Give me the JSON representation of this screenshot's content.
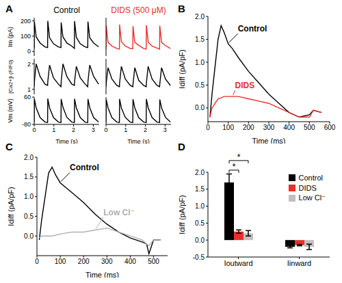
{
  "chart_data": [
    {
      "panel": "A",
      "type": "line",
      "title": "Control",
      "y_label": "Im (pA)",
      "x": [
        0,
        0.01,
        0.1,
        0.3,
        0.55,
        0.68,
        0.69,
        0.78,
        0.98,
        1.23,
        1.36,
        1.37,
        1.46,
        1.66,
        1.91,
        2.04,
        2.05,
        2.14,
        2.34,
        2.59,
        2.72,
        2.73,
        2.82,
        3.02,
        3.27
      ],
      "xlim": [
        0,
        3.3
      ],
      "ylim": [
        -30,
        220
      ],
      "yticks": [
        0,
        100,
        200
      ],
      "tick_labels": "y",
      "series": [
        {
          "color": "#000000",
          "values": [
            20,
            195,
            95,
            55,
            30,
            25,
            200,
            90,
            50,
            30,
            25,
            190,
            95,
            55,
            35,
            20,
            198,
            92,
            50,
            30,
            25,
            195,
            90,
            55,
            30
          ]
        }
      ]
    },
    {
      "type": "line",
      "y_label": "[Ca2+]i (F/F0)",
      "x": [
        0,
        0.01,
        0.1,
        0.3,
        0.55,
        0.68,
        0.69,
        0.78,
        0.98,
        1.23,
        1.36,
        1.37,
        1.46,
        1.66,
        1.91,
        2.04,
        2.05,
        2.14,
        2.34,
        2.59,
        2.72,
        2.73,
        2.82,
        3.02,
        3.27
      ],
      "xlim": [
        0,
        3.3
      ],
      "ylim": [
        0.8,
        2.2
      ],
      "yticks": [
        1,
        2
      ],
      "tick_labels": "y",
      "series": [
        {
          "color": "#000000",
          "values": [
            1.1,
            1.3,
            2.0,
            1.5,
            1.2,
            1.15,
            1.3,
            1.95,
            1.45,
            1.2,
            1.1,
            1.3,
            2.0,
            1.5,
            1.2,
            1.15,
            1.3,
            1.9,
            1.45,
            1.2,
            1.1,
            1.3,
            1.95,
            1.5,
            1.2
          ]
        }
      ]
    },
    {
      "type": "line",
      "y_label": "Vm (mV)",
      "x_label": "Time (s)",
      "x": [
        0,
        0.01,
        0.1,
        0.3,
        0.55,
        0.68,
        0.69,
        0.78,
        0.98,
        1.23,
        1.36,
        1.37,
        1.46,
        1.66,
        1.91,
        2.04,
        2.05,
        2.14,
        2.34,
        2.59,
        2.72,
        2.73,
        2.82,
        3.02,
        3.27
      ],
      "xlim": [
        0,
        3.3
      ],
      "xticks": [
        0,
        1,
        2,
        3
      ],
      "ylim": [
        -80,
        60
      ],
      "yticks": [
        -80,
        60
      ],
      "tick_labels": true,
      "series": [
        {
          "color": "#000000",
          "values": [
            -70,
            50,
            5,
            -45,
            -68,
            -70,
            52,
            5,
            -45,
            -68,
            -70,
            50,
            8,
            -44,
            -68,
            -70,
            51,
            5,
            -45,
            -69,
            -70,
            50,
            6,
            -45,
            -68
          ]
        }
      ]
    },
    {
      "type": "line",
      "title": "DIDS (500 μM)",
      "x": [
        0,
        0.01,
        0.1,
        0.3,
        0.55,
        0.68,
        0.69,
        0.78,
        0.98,
        1.23,
        1.36,
        1.37,
        1.46,
        1.66,
        1.91,
        2.04,
        2.05,
        2.14,
        2.34,
        2.59,
        2.72,
        2.73,
        2.82,
        3.02,
        3.27
      ],
      "xlim": [
        0,
        3.3
      ],
      "ylim": [
        -30,
        220
      ],
      "tick_labels": false,
      "series": [
        {
          "color": "#e8302a",
          "values": [
            15,
            170,
            60,
            35,
            20,
            15,
            175,
            65,
            35,
            20,
            18,
            165,
            60,
            40,
            20,
            15,
            172,
            62,
            35,
            22,
            15,
            168,
            60,
            38,
            20
          ]
        }
      ]
    },
    {
      "type": "line",
      "x": [
        0,
        0.01,
        0.1,
        0.3,
        0.55,
        0.68,
        0.69,
        0.78,
        0.98,
        1.23,
        1.36,
        1.37,
        1.46,
        1.66,
        1.91,
        2.04,
        2.05,
        2.14,
        2.34,
        2.59,
        2.72,
        2.73,
        2.82,
        3.02,
        3.27
      ],
      "xlim": [
        0,
        3.3
      ],
      "ylim": [
        0.8,
        2.2
      ],
      "tick_labels": false,
      "series": [
        {
          "color": "#000000",
          "values": [
            1.1,
            1.25,
            1.85,
            1.4,
            1.15,
            1.1,
            1.25,
            1.9,
            1.4,
            1.15,
            1.1,
            1.2,
            1.85,
            1.35,
            1.15,
            1.1,
            1.25,
            1.9,
            1.4,
            1.15,
            1.1,
            1.2,
            1.85,
            1.4,
            1.15
          ]
        }
      ]
    },
    {
      "type": "line",
      "x_label": "Time (s)",
      "x": [
        0,
        0.01,
        0.1,
        0.3,
        0.55,
        0.68,
        0.69,
        0.78,
        0.98,
        1.23,
        1.36,
        1.37,
        1.46,
        1.66,
        1.91,
        2.04,
        2.05,
        2.14,
        2.34,
        2.59,
        2.72,
        2.73,
        2.82,
        3.02,
        3.27
      ],
      "xlim": [
        0,
        3.3
      ],
      "xticks": [
        0,
        1,
        2,
        3
      ],
      "ylim": [
        -80,
        60
      ],
      "tick_labels": "x",
      "series": [
        {
          "color": "#000000",
          "values": [
            -70,
            48,
            5,
            -45,
            -68,
            -70,
            50,
            4,
            -44,
            -68,
            -70,
            49,
            5,
            -45,
            -68,
            -70,
            50,
            6,
            -45,
            -68,
            -70,
            48,
            5,
            -44,
            -68
          ]
        }
      ]
    },
    {
      "panel": "B",
      "type": "line",
      "x_label": "Time (ms)",
      "y_label": "Idiff (pA/pF)",
      "x": [
        10,
        20,
        35,
        50,
        65,
        80,
        100,
        120,
        150,
        200,
        250,
        300,
        350,
        400,
        450,
        500,
        520,
        560
      ],
      "xlim": [
        0,
        600
      ],
      "xticks": [
        0,
        100,
        200,
        300,
        400,
        500,
        600
      ],
      "ylim": [
        -0.3,
        2
      ],
      "yticks": [
        {
          "value": 0,
          "label": "0.0"
        },
        0.5,
        {
          "value": 1,
          "label": "1.0"
        },
        1.5,
        {
          "value": 2,
          "label": "2.0"
        }
      ],
      "series": [
        {
          "name": "Control",
          "color": "#000000",
          "values": [
            -0.2,
            0.3,
            0.9,
            1.5,
            1.8,
            1.65,
            1.4,
            1.3,
            1.1,
            0.8,
            0.55,
            0.3,
            0.1,
            -0.1,
            -0.2,
            -0.15,
            -0.05,
            -0.1
          ]
        },
        {
          "name": "DIDS",
          "color": "#e8302a",
          "values": [
            -0.2,
            0.0,
            0.1,
            0.2,
            0.22,
            0.25,
            0.25,
            0.25,
            0.25,
            0.2,
            0.15,
            0.1,
            0.0,
            -0.1,
            -0.2,
            -0.2,
            -0.05,
            -0.1
          ]
        }
      ]
    },
    {
      "panel": "C",
      "type": "line",
      "x_label": "Time (ms)",
      "y_label": "Idiff (pA/pF)",
      "x": [
        10,
        20,
        35,
        50,
        65,
        80,
        100,
        120,
        150,
        200,
        250,
        300,
        350,
        400,
        450,
        470,
        480,
        500,
        530
      ],
      "xlim": [
        0,
        560
      ],
      "xticks": [
        0,
        100,
        200,
        300,
        400,
        500
      ],
      "ylim": [
        -0.5,
        2
      ],
      "yticks": [
        {
          "value": 0,
          "label": "0.0"
        },
        0.5,
        {
          "value": 1,
          "label": "1.0"
        },
        1.5,
        {
          "value": 2,
          "label": "2.0"
        }
      ],
      "series": [
        {
          "name": "Control",
          "color": "#000000",
          "values": [
            -0.1,
            0.4,
            1.0,
            1.6,
            1.75,
            1.55,
            1.35,
            1.25,
            1.1,
            0.85,
            0.55,
            0.3,
            0.1,
            -0.05,
            -0.15,
            -0.2,
            -0.45,
            -0.1,
            -0.1
          ]
        },
        {
          "name": "Low Cl⁻",
          "color": "#b0b0b0",
          "values": [
            -0.05,
            0.0,
            0.0,
            0.0,
            0.0,
            0.02,
            0.05,
            0.07,
            0.1,
            0.1,
            0.15,
            0.2,
            0.1,
            0.0,
            -0.1,
            -0.2,
            -0.25,
            -0.1,
            -0.1
          ]
        }
      ]
    },
    {
      "panel": "D",
      "type": "bar",
      "y_label": "Idiff (pA/pF)",
      "categories": [
        "Ioutward",
        "Iinward"
      ],
      "ylim": [
        -0.5,
        2
      ],
      "yticks": [
        -0.5,
        {
          "value": 0,
          "label": "0.0"
        },
        0.5,
        {
          "value": 1,
          "label": "1.0"
        },
        1.5,
        {
          "value": 2,
          "label": "2.0"
        }
      ],
      "legend": "upper right",
      "series": [
        {
          "name": "Control",
          "color": "#000000",
          "values": [
            1.7,
            -0.2
          ],
          "errors": [
            0.25,
            0.03
          ]
        },
        {
          "name": "DIDS",
          "color": "#e8302a",
          "values": [
            0.25,
            -0.15
          ],
          "errors": [
            0.05,
            0.02
          ]
        },
        {
          "name": "Low Cl⁻",
          "color": "#c0c0c0",
          "values": [
            0.2,
            -0.2
          ],
          "errors": [
            0.08,
            0.08
          ]
        }
      ],
      "significance": [
        {
          "category": "Ioutward",
          "from": "Control",
          "to": "DIDS",
          "label": "*"
        },
        {
          "category": "Ioutward",
          "from": "Control",
          "to": "Low Cl⁻",
          "label": "*"
        }
      ]
    }
  ]
}
